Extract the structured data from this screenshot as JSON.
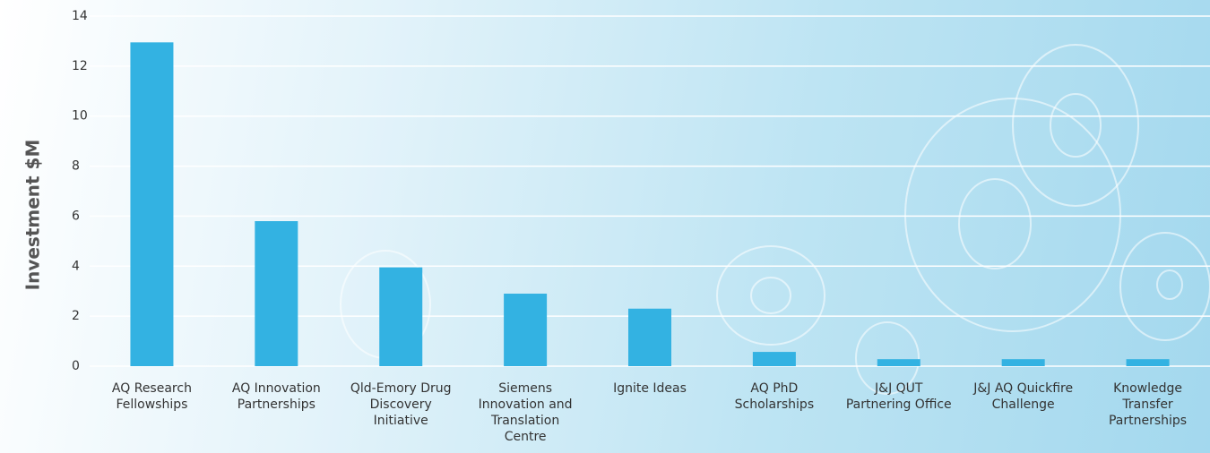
{
  "chart_data": {
    "type": "bar",
    "y_label": "Investment $M",
    "categories": [
      "AQ Research Fellowships",
      "AQ Innovation Partnerships",
      "Qld-Emory Drug Discovery Initiative",
      "Siemens Innovation and Translation Centre",
      "Ignite Ideas",
      "AQ PhD Scholarships",
      "J&J QUT Partnering Office",
      "J&J AQ Quickfire Challenge",
      "Knowledge Transfer Partnerships"
    ],
    "values": [
      12.95,
      5.8,
      3.95,
      2.9,
      2.3,
      0.57,
      0.28,
      0.28,
      0.28
    ],
    "color": "#33b2e2",
    "ylim": [
      0,
      14
    ],
    "yticks": [
      0,
      2,
      4,
      6,
      8,
      10,
      12,
      14
    ],
    "grid": true
  }
}
